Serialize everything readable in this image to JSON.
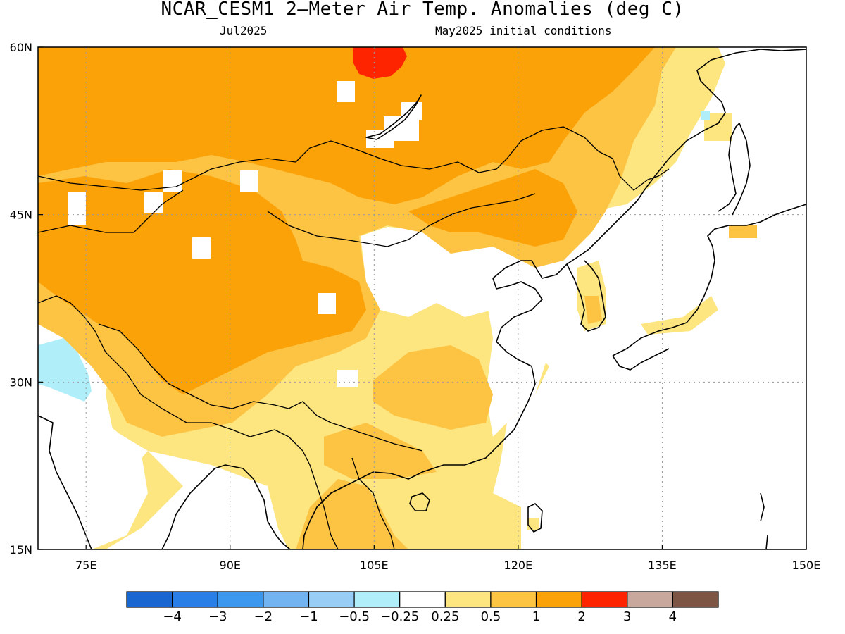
{
  "figure": {
    "title": "NCAR_CESM1 2–Meter Air Temp. Anomalies (deg C)",
    "subtitle_left": "Jul2025",
    "subtitle_right": "May2025 initial conditions"
  },
  "map": {
    "lon_range": [
      70,
      150
    ],
    "lat_range": [
      15,
      60
    ],
    "x_ticks": [
      {
        "value": 75,
        "label": "75E"
      },
      {
        "value": 90,
        "label": "90E"
      },
      {
        "value": 105,
        "label": "105E"
      },
      {
        "value": 120,
        "label": "120E"
      },
      {
        "value": 135,
        "label": "135E"
      },
      {
        "value": 150,
        "label": "150E"
      }
    ],
    "y_ticks": [
      {
        "value": 60,
        "label": "60N"
      },
      {
        "value": 45,
        "label": "45N"
      },
      {
        "value": 30,
        "label": "30N"
      },
      {
        "value": 15,
        "label": "15N"
      }
    ],
    "gridlines": "dotted",
    "colors": {
      "anomaly_05_1": "#fdc444",
      "anomaly_1_2": "#fba209",
      "anomaly_2_3": "#ff2400",
      "anomaly_025_05": "#fde57f",
      "anomaly_neg05_neg025": "#b0eefa",
      "anomaly_neutral": "#ffffff"
    }
  },
  "colorbar": {
    "colors": [
      "#1a66d0",
      "#2a7fe6",
      "#3c97ee",
      "#72b4f2",
      "#98cdf5",
      "#b0eefa",
      "#ffffff",
      "#fde57f",
      "#fdc444",
      "#fba209",
      "#ff2400",
      "#c8a89c",
      "#7c5544"
    ],
    "labels": [
      "−4",
      "−3",
      "−2",
      "−1",
      "−0.5",
      "−0.25",
      "0.25",
      "0.5",
      "1",
      "2",
      "3",
      "4"
    ]
  }
}
